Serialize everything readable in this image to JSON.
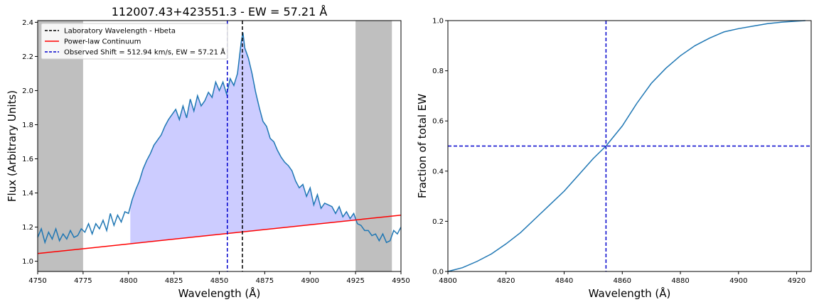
{
  "chart_data": [
    {
      "type": "line",
      "title": "112007.43+423551.3 - EW = 57.21 Å",
      "xlabel": "Wavelength (Å)",
      "ylabel": "Flux (Arbitrary Units)",
      "xlim": [
        4750,
        4950
      ],
      "ylim": [
        0.94,
        2.41
      ],
      "xticks": [
        4750,
        4775,
        4800,
        4825,
        4850,
        4875,
        4900,
        4925,
        4950
      ],
      "yticks": [
        1.0,
        1.2,
        1.4,
        1.6,
        1.8,
        2.0,
        2.2,
        2.4
      ],
      "ytick_labels": [
        "1.0",
        "1.2",
        "1.4",
        "1.6",
        "1.8",
        "2.0",
        "2.2",
        "2.4"
      ],
      "grey_bands": [
        [
          4750,
          4775
        ],
        [
          4925,
          4945
        ]
      ],
      "fill_range": [
        4801,
        4925
      ],
      "legend_position": "upper-left",
      "legend": [
        {
          "label": "Laboratory Wavelength - Hbeta",
          "color": "#000000",
          "style": "dashed"
        },
        {
          "label": "Power-law Continuum",
          "color": "#ff0000",
          "style": "solid"
        },
        {
          "label": "Observed Shift = 512.94 km/s, EW = 57.21 Å",
          "color": "#0000cc",
          "style": "dashed"
        }
      ],
      "vlines": [
        {
          "x": 4862.7,
          "color": "#000000"
        },
        {
          "x": 4854.4,
          "color": "#0000cc"
        }
      ],
      "continuum": {
        "x": [
          4750,
          4950
        ],
        "y": [
          1.045,
          1.27
        ],
        "color": "#ff0000"
      },
      "series": [
        {
          "color": "#1f77b4",
          "x": [
            4750,
            4752,
            4754,
            4756,
            4758,
            4760,
            4762,
            4764,
            4766,
            4768,
            4770,
            4772,
            4774,
            4776,
            4778,
            4780,
            4782,
            4784,
            4786,
            4788,
            4790,
            4792,
            4794,
            4796,
            4798,
            4800,
            4802,
            4804,
            4806,
            4808,
            4810,
            4812,
            4814,
            4816,
            4818,
            4820,
            4822,
            4824,
            4826,
            4828,
            4830,
            4832,
            4834,
            4836,
            4838,
            4840,
            4842,
            4844,
            4846,
            4848,
            4850,
            4852,
            4854,
            4856,
            4858,
            4860,
            4862,
            4863,
            4864,
            4866,
            4868,
            4870,
            4872,
            4874,
            4876,
            4878,
            4880,
            4882,
            4884,
            4886,
            4888,
            4890,
            4892,
            4894,
            4896,
            4898,
            4900,
            4902,
            4904,
            4906,
            4908,
            4910,
            4912,
            4914,
            4916,
            4918,
            4920,
            4922,
            4924,
            4926,
            4928,
            4930,
            4932,
            4934,
            4936,
            4938,
            4940,
            4942,
            4944,
            4946,
            4948,
            4950
          ],
          "y": [
            1.14,
            1.19,
            1.11,
            1.17,
            1.13,
            1.19,
            1.12,
            1.16,
            1.13,
            1.18,
            1.14,
            1.15,
            1.19,
            1.17,
            1.22,
            1.16,
            1.22,
            1.19,
            1.24,
            1.18,
            1.28,
            1.21,
            1.27,
            1.23,
            1.29,
            1.28,
            1.36,
            1.42,
            1.47,
            1.54,
            1.59,
            1.63,
            1.68,
            1.71,
            1.74,
            1.79,
            1.83,
            1.86,
            1.89,
            1.83,
            1.91,
            1.84,
            1.95,
            1.88,
            1.97,
            1.91,
            1.94,
            1.99,
            1.96,
            2.05,
            2.0,
            2.05,
            1.98,
            2.07,
            2.03,
            2.1,
            2.28,
            2.34,
            2.25,
            2.19,
            2.1,
            1.99,
            1.9,
            1.82,
            1.79,
            1.72,
            1.7,
            1.65,
            1.61,
            1.58,
            1.56,
            1.53,
            1.47,
            1.43,
            1.45,
            1.38,
            1.43,
            1.33,
            1.39,
            1.31,
            1.34,
            1.33,
            1.32,
            1.28,
            1.32,
            1.26,
            1.29,
            1.25,
            1.28,
            1.22,
            1.21,
            1.18,
            1.18,
            1.15,
            1.16,
            1.12,
            1.16,
            1.11,
            1.12,
            1.18,
            1.16,
            1.2
          ]
        }
      ]
    },
    {
      "type": "line",
      "title": "",
      "xlabel": "Wavelength (Å)",
      "ylabel": "Fraction of total EW",
      "xlim": [
        4800,
        4925
      ],
      "ylim": [
        0.0,
        1.0
      ],
      "xticks": [
        4800,
        4820,
        4840,
        4860,
        4880,
        4900,
        4920
      ],
      "yticks": [
        0.0,
        0.2,
        0.4,
        0.6,
        0.8,
        1.0
      ],
      "ytick_labels": [
        "0.0",
        "0.2",
        "0.4",
        "0.6",
        "0.8",
        "1.0"
      ],
      "vlines": [
        {
          "x": 4854.4,
          "color": "#0000cc"
        }
      ],
      "hlines": [
        {
          "y": 0.5,
          "color": "#0000cc"
        }
      ],
      "series": [
        {
          "color": "#1f77b4",
          "x": [
            4800,
            4805,
            4810,
            4815,
            4820,
            4825,
            4830,
            4835,
            4840,
            4845,
            4850,
            4854.4,
            4860,
            4865,
            4870,
            4875,
            4880,
            4885,
            4890,
            4895,
            4900,
            4905,
            4910,
            4915,
            4920,
            4923
          ],
          "y": [
            0.0,
            0.015,
            0.04,
            0.07,
            0.11,
            0.155,
            0.21,
            0.265,
            0.32,
            0.385,
            0.45,
            0.5,
            0.58,
            0.67,
            0.75,
            0.81,
            0.86,
            0.9,
            0.93,
            0.955,
            0.968,
            0.978,
            0.988,
            0.994,
            0.998,
            1.0
          ]
        }
      ]
    }
  ]
}
